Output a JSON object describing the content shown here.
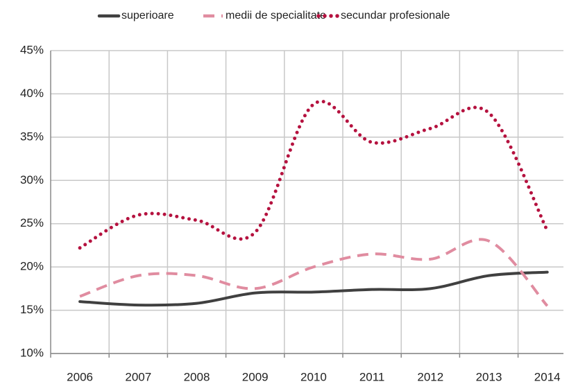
{
  "chart_data": {
    "type": "line",
    "categories": [
      "2006",
      "2007",
      "2008",
      "2009",
      "2010",
      "2011",
      "2012",
      "2013",
      "2014"
    ],
    "series": [
      {
        "name": "superioare",
        "color": "#404040",
        "style": "solid",
        "values": [
          16.0,
          15.6,
          15.8,
          17.0,
          17.1,
          17.4,
          17.5,
          19.0,
          19.4
        ]
      },
      {
        "name": "medii de specialitate",
        "color": "#e08ca0",
        "style": "dashed",
        "values": [
          16.6,
          19.0,
          19.0,
          17.5,
          20.0,
          21.5,
          20.9,
          23.0,
          15.5
        ]
      },
      {
        "name": "secundar profesionale",
        "color": "#b5123f",
        "style": "dotted",
        "values": [
          22.2,
          26.0,
          25.4,
          24.0,
          38.8,
          34.4,
          36.0,
          37.8,
          24.2
        ]
      }
    ],
    "ylim": [
      10,
      45
    ],
    "yticks": [
      {
        "value": 10,
        "label": "10%"
      },
      {
        "value": 15,
        "label": "15%"
      },
      {
        "value": 20,
        "label": "20%"
      },
      {
        "value": 25,
        "label": "25%"
      },
      {
        "value": 30,
        "label": "30%"
      },
      {
        "value": 35,
        "label": "35%"
      },
      {
        "value": 40,
        "label": "40%"
      },
      {
        "value": 45,
        "label": "45%"
      }
    ],
    "grid": true,
    "smooth": true,
    "legend": "top"
  }
}
